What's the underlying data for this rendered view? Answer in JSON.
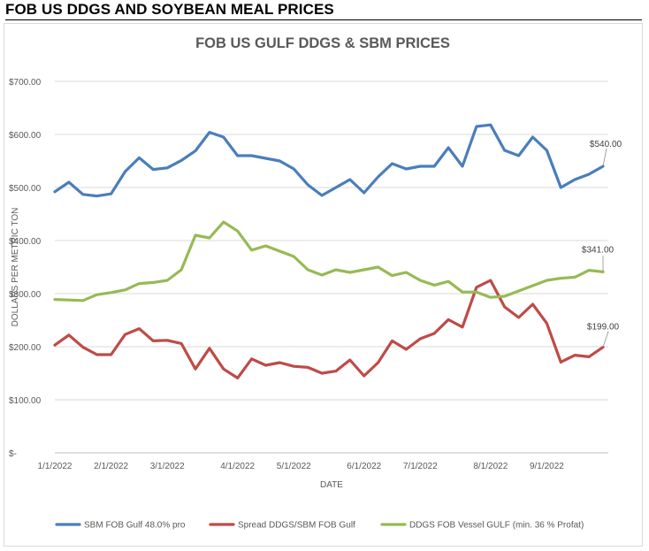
{
  "page": {
    "heading": "FOB US DDGS AND SOYBEAN MEAL PRICES"
  },
  "chart_data": {
    "type": "line",
    "title": "FOB US GULF DDGS & SBM PRICES",
    "xlabel": "DATE",
    "ylabel": "DOLLARS PER METRIC TON",
    "ylim": [
      0,
      700
    ],
    "yticks": [
      0,
      100,
      200,
      300,
      400,
      500,
      600,
      700
    ],
    "ytick_labels": [
      "$-",
      "$100.00",
      "$200.00",
      "$300.00",
      "$400.00",
      "$500.00",
      "$600.00",
      "$700.00"
    ],
    "x_tick_labels": [
      "1/1/2022",
      "2/1/2022",
      "3/1/2022",
      "4/1/2022",
      "5/1/2022",
      "6/1/2022",
      "7/1/2022",
      "8/1/2022",
      "9/1/2022"
    ],
    "x_tick_index": [
      0,
      4,
      8,
      13,
      17,
      22,
      26,
      31,
      35
    ],
    "x_start_date": "2022-01-01",
    "x_step_days": 7,
    "grid": true,
    "legend_position": "bottom",
    "series": [
      {
        "name": "SBM FOB Gulf 48.0% pro",
        "color": "#4a7ebb",
        "values": [
          492,
          510,
          487,
          484,
          488,
          530,
          556,
          534,
          537,
          551,
          569,
          604,
          595,
          560,
          560,
          555,
          550,
          535,
          505,
          485,
          500,
          515,
          490,
          520,
          545,
          535,
          540,
          540,
          575,
          540,
          615,
          618,
          570,
          560,
          595,
          570,
          500,
          515,
          525,
          540
        ],
        "end_label": "$540.00"
      },
      {
        "name": "Spread DDGS/SBM FOB Gulf",
        "color": "#be4b48",
        "values": [
          203,
          222,
          199,
          185,
          185,
          223,
          234,
          211,
          212,
          206,
          158,
          197,
          158,
          141,
          177,
          165,
          170,
          163,
          161,
          150,
          154,
          175,
          145,
          170,
          211,
          195,
          215,
          225,
          251,
          237,
          312,
          325,
          275,
          255,
          280,
          244,
          171,
          184,
          181,
          199
        ],
        "end_label": "$199.00"
      },
      {
        "name": "DDGS FOB Vessel GULF  (min. 36 % Profat)",
        "color": "#98b954",
        "values": [
          289,
          288,
          287,
          298,
          302,
          307,
          319,
          321,
          325,
          345,
          410,
          405,
          435,
          418,
          382,
          390,
          380,
          370,
          345,
          335,
          345,
          340,
          345,
          350,
          334,
          340,
          325,
          316,
          323,
          303,
          303,
          293,
          295,
          305,
          315,
          325,
          329,
          331,
          344,
          341
        ],
        "end_label": "$341.00"
      }
    ]
  }
}
